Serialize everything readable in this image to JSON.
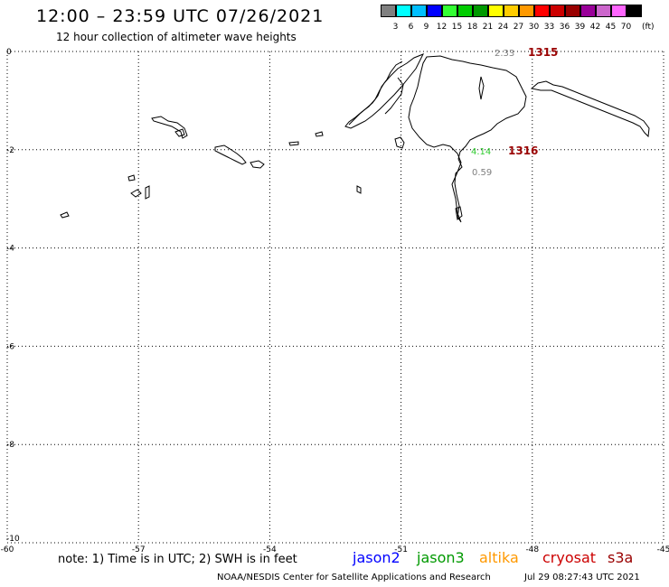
{
  "title": "12:00 – 23:59 UTC 07/26/2021",
  "subtitle": "12 hour collection of altimeter wave heights",
  "legend": {
    "labels": [
      "3",
      "6",
      "9",
      "12",
      "15",
      "18",
      "21",
      "24",
      "27",
      "30",
      "33",
      "36",
      "39",
      "42",
      "45",
      "70"
    ],
    "colors": [
      "#808080",
      "#00ffff",
      "#00bfff",
      "#0000ff",
      "#33ff33",
      "#00cc00",
      "#009900",
      "#ffff00",
      "#ffcc00",
      "#ff9900",
      "#ff0000",
      "#cc0000",
      "#990000",
      "#990099",
      "#cc66cc",
      "#ff66ff",
      "#000000"
    ],
    "unit": "(ft)"
  },
  "map": {
    "x_ticks": [
      "-60",
      "-57",
      "-54",
      "-51",
      "-48",
      "-45"
    ],
    "y_ticks": [
      "0",
      "-2",
      "-4",
      "-6",
      "-8",
      "-10"
    ],
    "grid_style": "dotted",
    "tracks": [
      {
        "id": "1315",
        "color": "#990000",
        "height_label": "2.33",
        "height_color": "#808080"
      },
      {
        "id": "1316",
        "color": "#990000",
        "height_label": "4.14",
        "height_color": "#33cc33"
      }
    ],
    "extra_height_label": "0.59",
    "extra_height_color": "#808080"
  },
  "footer": {
    "note": "note: 1) Time is in UTC; 2) SWH is in feet",
    "satellites": [
      {
        "name": "jason2",
        "color": "#0000ff"
      },
      {
        "name": "jason3",
        "color": "#009900"
      },
      {
        "name": "altika",
        "color": "#ff9900"
      },
      {
        "name": "cryosat",
        "color": "#cc0000"
      },
      {
        "name": "s3a",
        "color": "#990000"
      }
    ],
    "credit": "NOAA/NESDIS Center for Satellite Applications and Research",
    "timestamp": "Jul 29 08:27:43 UTC 2021"
  }
}
